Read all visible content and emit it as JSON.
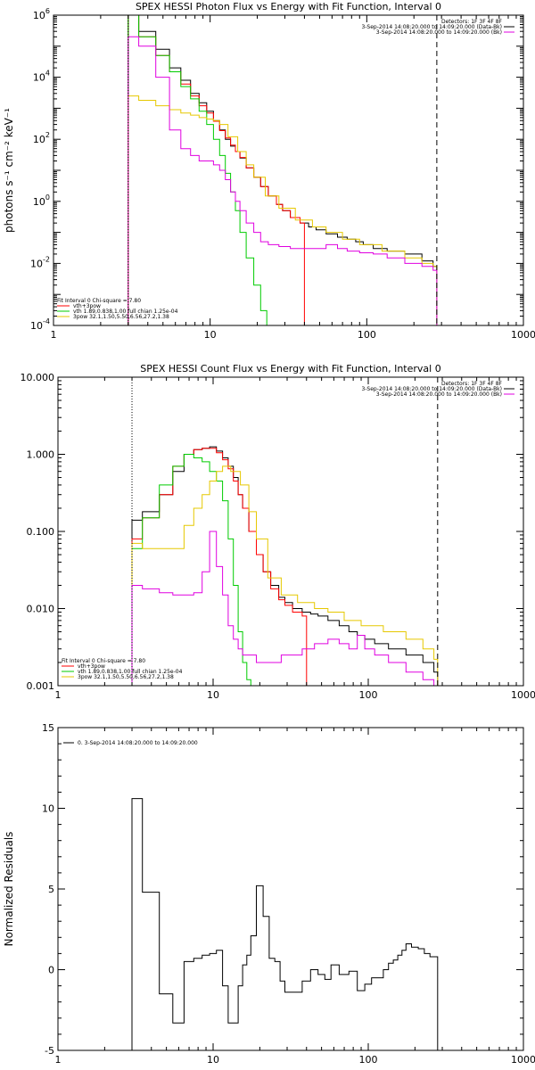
{
  "chart_data": [
    {
      "type": "line",
      "title": "SPEX HESSI Photon Flux vs Energy with Fit Function, Interval 0",
      "ylabel": "photons s⁻¹ cm⁻² keV⁻¹",
      "xlabel": "",
      "xscale": "log",
      "yscale": "log",
      "xlim": [
        1,
        1000
      ],
      "ylim": [
        0.0001,
        1000000
      ],
      "x_ticks": [
        "1",
        "10",
        "100",
        "1000"
      ],
      "y_ticks": [
        {
          "v": 1000000,
          "base": "10",
          "exp": "6"
        },
        {
          "v": 10000,
          "base": "10",
          "exp": "4"
        },
        {
          "v": 100,
          "base": "10",
          "exp": "2"
        },
        {
          "v": 1,
          "base": "10",
          "exp": "0"
        },
        {
          "v": 0.01,
          "base": "10",
          "exp": "-2"
        },
        {
          "v": 0.0001,
          "base": "10",
          "exp": "-4"
        }
      ],
      "legend_top_right": [
        "Detectors: 1F 3F 4F 8F",
        "3-Sep-2014 14:08:20.000 to 14:09:20.000 (Data-Bk)",
        "3-Sep-2014 14:08:20.000 to 14:09:20.000 (Bk)"
      ],
      "legend_bottom_left": [
        "Fit Interval 0   Chi-square = 7.80",
        "vth+3pow",
        "vth 1.89,0.838,1.00  full chian 1.25e-04",
        "3pow 32.1,1.50,5.50,6.56,27.2,1.38"
      ],
      "vlines": [
        {
          "x": 3,
          "style": "dotted"
        },
        {
          "x": 280,
          "style": "dashed"
        }
      ],
      "series": [
        {
          "color": "#000000",
          "x": [
            3,
            4,
            5,
            6,
            7,
            8,
            9,
            10,
            11,
            12,
            13,
            14,
            15,
            16,
            18,
            20,
            22,
            25,
            28,
            30,
            35,
            40,
            45,
            50,
            60,
            70,
            80,
            90,
            100,
            120,
            150,
            200,
            250,
            280
          ],
          "y": [
            1000000,
            300000,
            80000,
            20000,
            8000,
            3000,
            1500,
            800,
            400,
            200,
            100,
            60,
            40,
            25,
            12,
            6,
            3,
            1.5,
            0.8,
            0.5,
            0.3,
            0.2,
            0.15,
            0.12,
            0.09,
            0.07,
            0.06,
            0.05,
            0.04,
            0.03,
            0.025,
            0.02,
            0.012,
            0.008
          ]
        },
        {
          "color": "#ff0000",
          "x": [
            3,
            4,
            5,
            6,
            7,
            8,
            9,
            10,
            11,
            12,
            13,
            14,
            15,
            16,
            18,
            20,
            22,
            25,
            28,
            30,
            35,
            40
          ],
          "y": [
            1000000,
            200000,
            50000,
            15000,
            6000,
            2500,
            1200,
            700,
            380,
            190,
            110,
            65,
            40,
            26,
            12,
            6,
            3,
            1.5,
            0.8,
            0.5,
            0.3,
            0.2
          ]
        },
        {
          "color": "#00cc00",
          "x": [
            3,
            4,
            5,
            6,
            7,
            8,
            9,
            10,
            11,
            12,
            13,
            14,
            15,
            16,
            18,
            20,
            22,
            24
          ],
          "y": [
            1000000,
            200000,
            50000,
            15000,
            5000,
            2000,
            800,
            300,
            100,
            30,
            8,
            2,
            0.5,
            0.1,
            0.015,
            0.002,
            0.0003,
            0.0001
          ]
        },
        {
          "color": "#e6c800",
          "x": [
            3,
            4,
            5,
            6,
            7,
            8,
            9,
            10,
            11,
            12,
            14,
            16,
            18,
            20,
            25,
            30,
            40,
            50,
            60,
            80,
            100,
            150,
            200,
            250,
            280
          ],
          "y": [
            2500,
            1800,
            1200,
            900,
            700,
            600,
            500,
            450,
            400,
            300,
            120,
            40,
            15,
            6,
            1.5,
            0.6,
            0.25,
            0.15,
            0.1,
            0.06,
            0.04,
            0.025,
            0.015,
            0.01,
            0.008
          ]
        },
        {
          "color": "#e000e0",
          "x": [
            3,
            4,
            5,
            6,
            7,
            8,
            9,
            10,
            11,
            12,
            13,
            14,
            15,
            16,
            18,
            20,
            22,
            25,
            30,
            35,
            40,
            50,
            60,
            70,
            80,
            100,
            120,
            150,
            200,
            250,
            280
          ],
          "y": [
            200000,
            100000,
            10000,
            200,
            50,
            30,
            20,
            20,
            15,
            10,
            5,
            2,
            1,
            0.5,
            0.2,
            0.1,
            0.05,
            0.04,
            0.035,
            0.03,
            0.03,
            0.03,
            0.04,
            0.03,
            0.025,
            0.022,
            0.02,
            0.015,
            0.01,
            0.008,
            0.006
          ]
        }
      ]
    },
    {
      "type": "line",
      "title": "SPEX HESSI Count Flux vs Energy with Fit Function, Interval 0",
      "ylabel": "",
      "xlabel": "",
      "xscale": "log",
      "yscale": "log",
      "xlim": [
        1,
        1000
      ],
      "ylim": [
        0.001,
        10
      ],
      "x_ticks": [
        "1",
        "10",
        "100",
        "1000"
      ],
      "y_ticks": [
        {
          "v": 10,
          "label": "10.000"
        },
        {
          "v": 1,
          "label": "1.000"
        },
        {
          "v": 0.1,
          "label": "0.100"
        },
        {
          "v": 0.01,
          "label": "0.010"
        },
        {
          "v": 0.001,
          "label": "0.001"
        }
      ],
      "legend_top_right": [
        "Detectors: 1F 3F 4F 8F",
        "3-Sep-2014 14:08:20.000 to 14:09:20.000 (Data-Bk)",
        "3-Sep-2014 14:08:20.000 to 14:09:20.000 (Bk)"
      ],
      "legend_bottom_left": [
        "Fit Interval 0   Chi-square = 7.80",
        "vth+3pow",
        "vth 1.89,0.838,1.00  full chian 1.25e-04",
        "3pow 32.1,1.50,5.50,6.56,27.2,1.38"
      ],
      "vlines": [
        {
          "x": 3,
          "style": "dotted"
        },
        {
          "x": 280,
          "style": "dashed"
        }
      ],
      "series": [
        {
          "color": "#000000",
          "x": [
            3,
            4,
            5,
            6,
            7,
            8,
            9,
            10,
            11,
            12,
            13,
            14,
            15,
            16,
            18,
            20,
            22,
            25,
            28,
            30,
            35,
            40,
            45,
            50,
            60,
            70,
            80,
            90,
            100,
            120,
            150,
            200,
            250,
            280
          ],
          "y": [
            0.14,
            0.18,
            0.3,
            0.6,
            1,
            1.15,
            1.2,
            1.25,
            1.1,
            0.9,
            0.7,
            0.5,
            0.3,
            0.2,
            0.1,
            0.05,
            0.03,
            0.02,
            0.014,
            0.012,
            0.01,
            0.009,
            0.0085,
            0.008,
            0.007,
            0.006,
            0.005,
            0.0045,
            0.004,
            0.0035,
            0.003,
            0.0025,
            0.002,
            0.0015
          ]
        },
        {
          "color": "#ff0000",
          "x": [
            3,
            4,
            5,
            6,
            7,
            8,
            9,
            10,
            11,
            12,
            13,
            14,
            15,
            16,
            18,
            20,
            22,
            25,
            28,
            30,
            35,
            40
          ],
          "y": [
            0.08,
            0.15,
            0.3,
            0.7,
            1,
            1.15,
            1.2,
            1.2,
            1.05,
            0.85,
            0.65,
            0.45,
            0.3,
            0.2,
            0.1,
            0.05,
            0.03,
            0.018,
            0.013,
            0.011,
            0.009,
            0.008
          ]
        },
        {
          "color": "#00cc00",
          "x": [
            3,
            4,
            5,
            6,
            7,
            8,
            9,
            10,
            11,
            12,
            13,
            14,
            15,
            16,
            17,
            18
          ],
          "y": [
            0.06,
            0.15,
            0.4,
            0.7,
            1,
            0.9,
            0.8,
            0.6,
            0.45,
            0.25,
            0.08,
            0.02,
            0.005,
            0.002,
            0.0012,
            0.001
          ]
        },
        {
          "color": "#e6c800",
          "x": [
            3,
            4,
            5,
            6,
            7,
            8,
            9,
            10,
            11,
            12,
            14,
            16,
            18,
            20,
            25,
            30,
            40,
            50,
            60,
            80,
            100,
            150,
            200,
            250,
            280
          ],
          "y": [
            0.07,
            0.06,
            0.06,
            0.06,
            0.12,
            0.2,
            0.3,
            0.45,
            0.6,
            0.7,
            0.6,
            0.4,
            0.18,
            0.08,
            0.025,
            0.015,
            0.012,
            0.01,
            0.009,
            0.007,
            0.006,
            0.005,
            0.004,
            0.003,
            0.0022
          ]
        },
        {
          "color": "#e000e0",
          "x": [
            3,
            4,
            5,
            6,
            7,
            8,
            9,
            10,
            11,
            12,
            13,
            14,
            15,
            16,
            18,
            20,
            22,
            25,
            30,
            35,
            40,
            50,
            60,
            70,
            80,
            90,
            100,
            120,
            150,
            200,
            250,
            280
          ],
          "y": [
            0.02,
            0.018,
            0.016,
            0.015,
            0.015,
            0.016,
            0.03,
            0.1,
            0.035,
            0.015,
            0.006,
            0.004,
            0.003,
            0.0025,
            0.0025,
            0.002,
            0.002,
            0.002,
            0.0025,
            0.0025,
            0.003,
            0.0035,
            0.004,
            0.0035,
            0.003,
            0.0045,
            0.003,
            0.0025,
            0.002,
            0.0015,
            0.0012,
            0.001
          ]
        }
      ]
    },
    {
      "type": "line",
      "title": "",
      "ylabel": "Normalized Residuals",
      "xlabel": "",
      "xscale": "log",
      "yscale": "linear",
      "xlim": [
        1,
        1000
      ],
      "ylim": [
        -5,
        15
      ],
      "x_ticks": [
        "1",
        "10",
        "100",
        "1000"
      ],
      "y_ticks": [
        {
          "v": -5,
          "label": "-5"
        },
        {
          "v": 0,
          "label": "0"
        },
        {
          "v": 5,
          "label": "5"
        },
        {
          "v": 10,
          "label": "10"
        },
        {
          "v": 15,
          "label": "15"
        }
      ],
      "legend_top_left": "0.  3-Sep-2014 14:08:20.000 to 14:09:20.000",
      "series": [
        {
          "color": "#000000",
          "x": [
            3,
            4,
            5,
            6,
            7,
            8,
            9,
            10,
            11,
            12,
            13,
            14,
            15,
            16,
            17,
            18,
            20,
            22,
            24,
            26,
            28,
            30,
            35,
            40,
            45,
            50,
            55,
            60,
            70,
            80,
            90,
            100,
            110,
            120,
            130,
            140,
            150,
            160,
            170,
            180,
            200,
            220,
            240,
            260,
            280
          ],
          "y": [
            10.6,
            4.8,
            -1.5,
            -3.3,
            0.5,
            0.7,
            0.9,
            1,
            1.2,
            -1,
            -3.3,
            -3.3,
            -1,
            0.3,
            0.9,
            2.1,
            5.2,
            3.3,
            0.7,
            0.5,
            -0.7,
            -1.4,
            -1.4,
            -0.7,
            0,
            -0.3,
            -0.6,
            0.3,
            -0.3,
            -0.1,
            -1.3,
            -0.9,
            -0.5,
            -0.5,
            0,
            0.4,
            0.6,
            0.9,
            1.2,
            1.6,
            1.4,
            1.3,
            1,
            0.8,
            0.8
          ]
        }
      ]
    }
  ]
}
